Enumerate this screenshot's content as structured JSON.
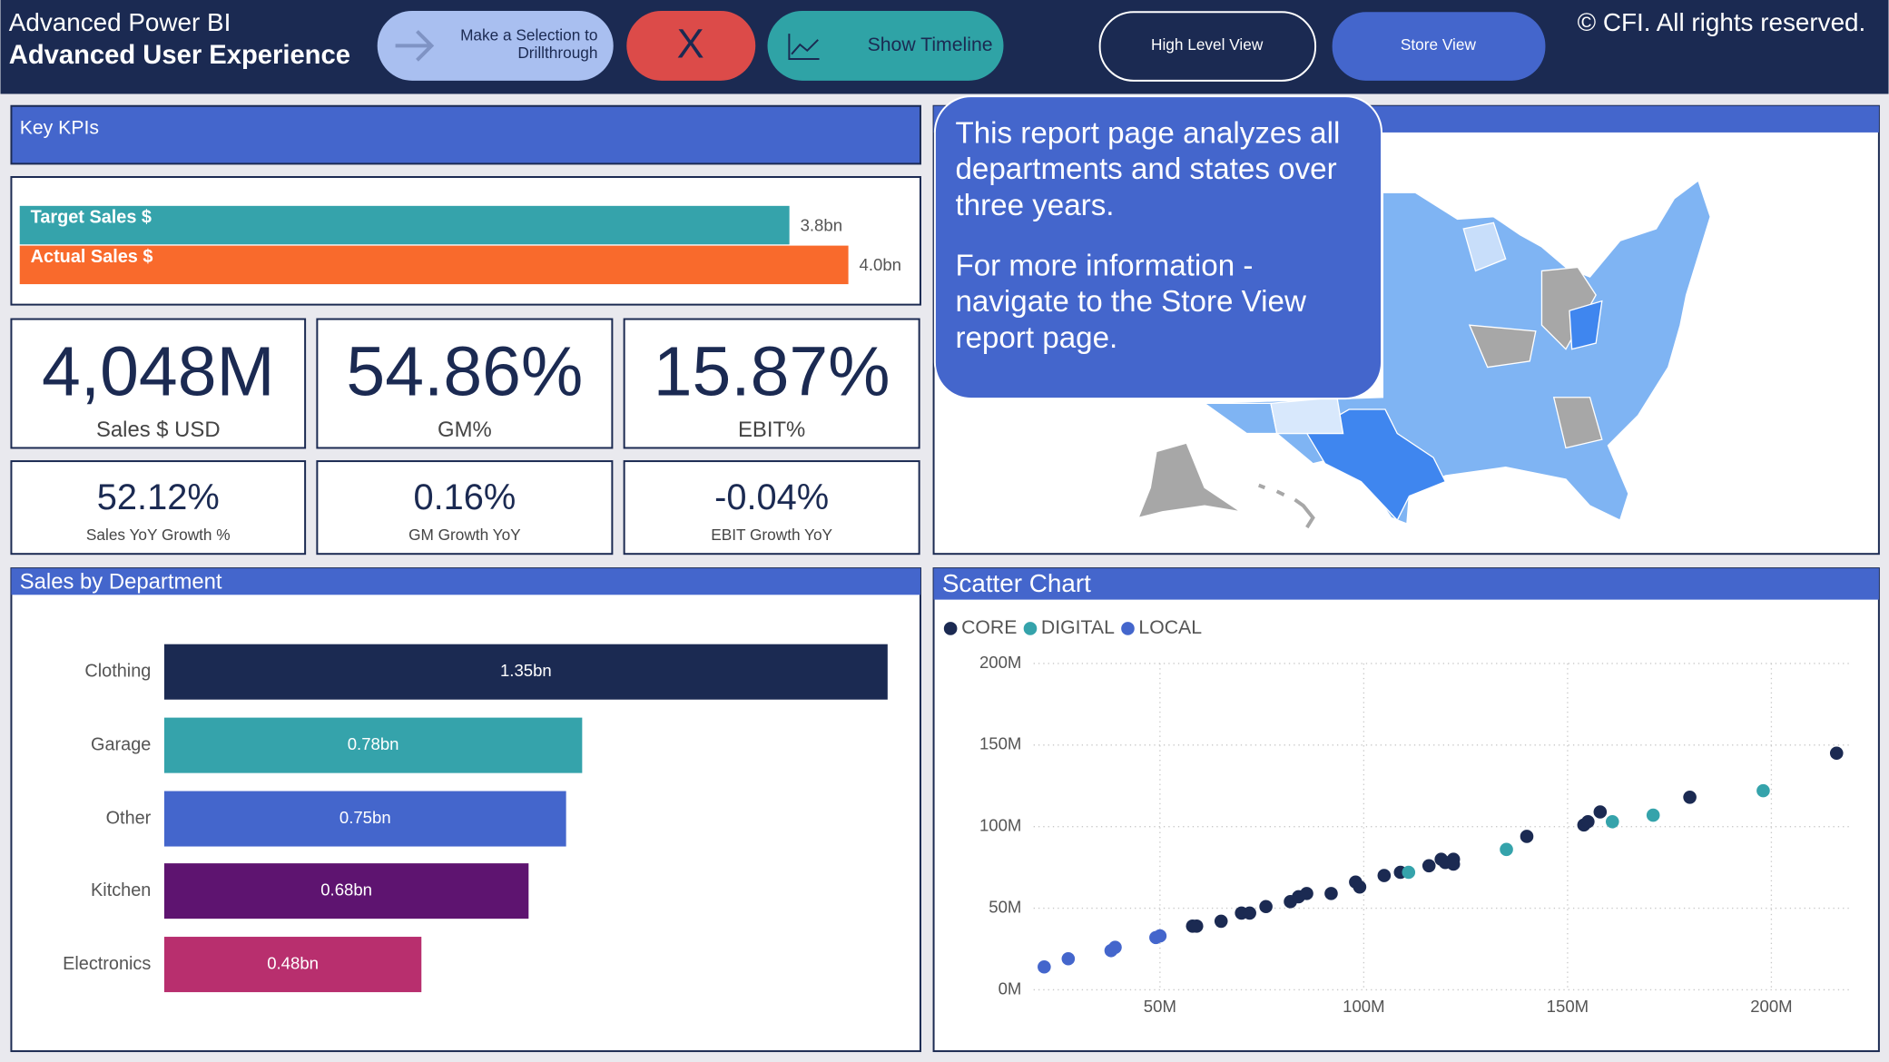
{
  "header": {
    "title": "Advanced Power BI",
    "subtitle": "Advanced User Experience",
    "buttons": [
      {
        "lines": [
          "Make a Selection to",
          "Drillthrough"
        ]
      },
      {
        "lines": [
          "X"
        ]
      },
      {
        "lines": [
          "Show Timeline"
        ]
      },
      {
        "lines": [
          "High Level View"
        ]
      },
      {
        "lines": [
          "Store View"
        ]
      }
    ],
    "copyright": "© CFI. All rights reserved."
  },
  "key_kpis_title": "Key KPIs",
  "kpis": [
    {
      "value": "4,048M",
      "label": "Sales $ USD"
    },
    {
      "value": "54.86%",
      "label": "GM%"
    },
    {
      "value": "15.87%",
      "label": "EBIT%"
    },
    {
      "value": "52.12%",
      "label": "Sales YoY Growth %"
    },
    {
      "value": "0.16%",
      "label": "GM Growth YoY"
    },
    {
      "value": "-0.04%",
      "label": "EBIT Growth YoY"
    }
  ],
  "tooltip": {
    "paragraphs": [
      [
        "This report page analyzes all",
        "departments and states over",
        "three years."
      ],
      [
        "For more information -",
        "navigate to the Store View",
        "report page."
      ]
    ]
  },
  "chart_data": [
    {
      "type": "bar",
      "orientation": "horizontal",
      "categories": [
        "Target Sales $",
        "Actual Sales $"
      ],
      "values": [
        3.76,
        4.048
      ],
      "value_labels": [
        "3.8bn",
        "4.0bn"
      ],
      "colors": [
        "#35a3ab",
        "#f96a2c"
      ],
      "xlim": [
        0,
        4.2
      ]
    },
    {
      "type": "bar",
      "orientation": "horizontal",
      "title": "Sales by Department",
      "categories": [
        "Clothing",
        "Garage",
        "Other",
        "Kitchen",
        "Electronics"
      ],
      "values": [
        1.35,
        0.78,
        0.75,
        0.68,
        0.48
      ],
      "value_labels": [
        "1.35bn",
        "0.78bn",
        "0.75bn",
        "0.68bn",
        "0.48bn"
      ],
      "colors": [
        "#1b2a52",
        "#35a3ab",
        "#4466cc",
        "#5e1470",
        "#b82f6e"
      ],
      "xlim": [
        0,
        1.4
      ]
    },
    {
      "type": "scatter",
      "title": "Scatter Chart",
      "grid": true,
      "xlim": [
        19,
        219
      ],
      "ylim": [
        0,
        200
      ],
      "xticks": [
        {
          "value": 50,
          "label": "50M"
        },
        {
          "value": 100,
          "label": "100M"
        },
        {
          "value": 150,
          "label": "150M"
        },
        {
          "value": 200,
          "label": "200M"
        }
      ],
      "yticks": [
        {
          "value": 0,
          "label": "0M"
        },
        {
          "value": 50,
          "label": "50M"
        },
        {
          "value": 100,
          "label": "100M"
        },
        {
          "value": 150,
          "label": "150M"
        },
        {
          "value": 200,
          "label": "200M"
        }
      ],
      "series": [
        {
          "name": "CORE",
          "color": "#1b2a52",
          "x": [
            58,
            59,
            65,
            70,
            72,
            76,
            82,
            84,
            86,
            92,
            98,
            99,
            105,
            109,
            116,
            119,
            120,
            122,
            122,
            140,
            154,
            155,
            158,
            180,
            216
          ],
          "values": [
            39,
            39,
            42,
            47,
            47,
            51,
            54,
            57,
            59,
            59,
            66,
            63,
            70,
            72,
            76,
            80,
            78,
            80,
            77,
            94,
            101,
            103,
            109,
            118,
            145
          ]
        },
        {
          "name": "DIGITAL",
          "color": "#35a3ab",
          "x": [
            111,
            135,
            161,
            171,
            198
          ],
          "values": [
            72,
            86,
            103,
            107,
            122
          ]
        },
        {
          "name": "LOCAL",
          "color": "#4466cc",
          "x": [
            21.6,
            27.5,
            38,
            39,
            49,
            50
          ],
          "values": [
            14,
            19,
            24,
            26,
            32,
            33
          ]
        }
      ]
    }
  ]
}
